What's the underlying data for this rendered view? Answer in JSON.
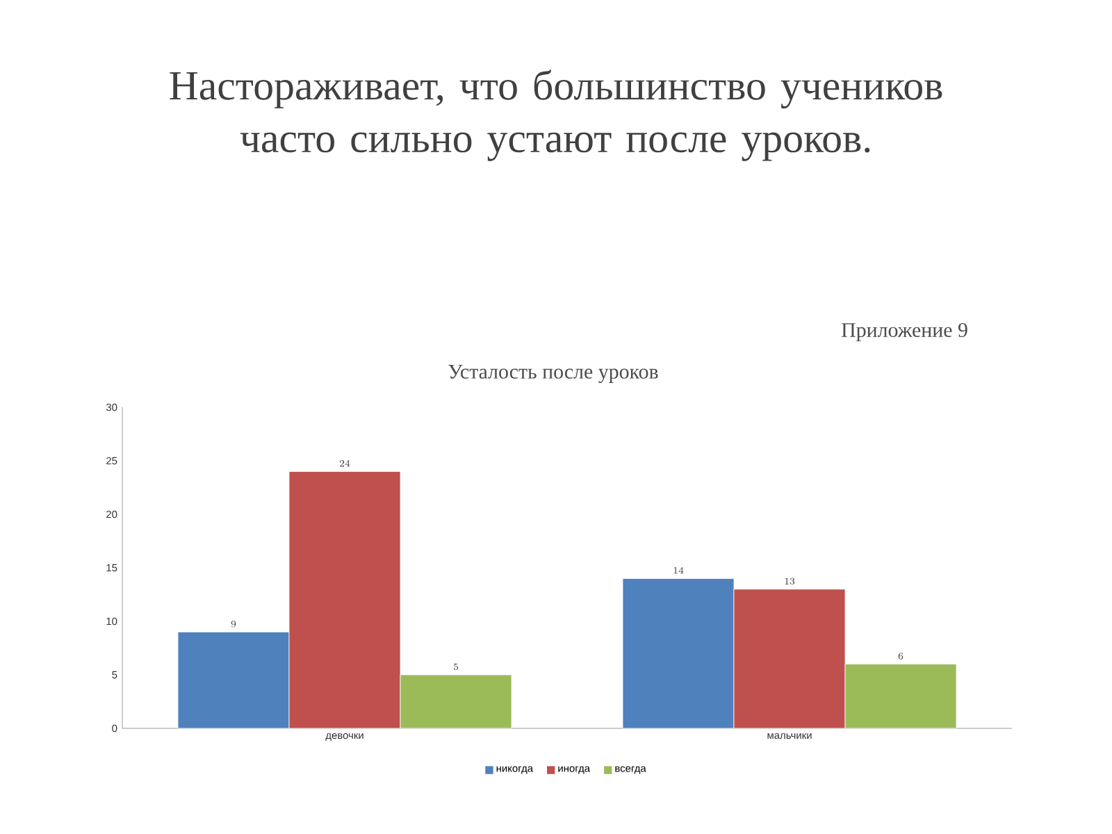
{
  "chart_data": {
    "type": "bar",
    "title": "Настораживает, что большинство учеников часто сильно устают после уроков.",
    "subtitle": "Усталость после уроков",
    "annotations": [
      "Приложение 9"
    ],
    "categories": [
      "девочки",
      "мальчики"
    ],
    "series": [
      {
        "name": "никогда",
        "color": "#4f81bd",
        "values": [
          9,
          14
        ]
      },
      {
        "name": "иногда",
        "color": "#c0504d",
        "values": [
          24,
          13
        ]
      },
      {
        "name": "всегда",
        "color": "#9bbb59",
        "values": [
          5,
          6
        ]
      }
    ],
    "ylim": [
      0,
      30
    ],
    "yticks": [
      0,
      5,
      10,
      15,
      20,
      25,
      30
    ],
    "data_labels": true,
    "legend": "bottom",
    "grid": false
  }
}
